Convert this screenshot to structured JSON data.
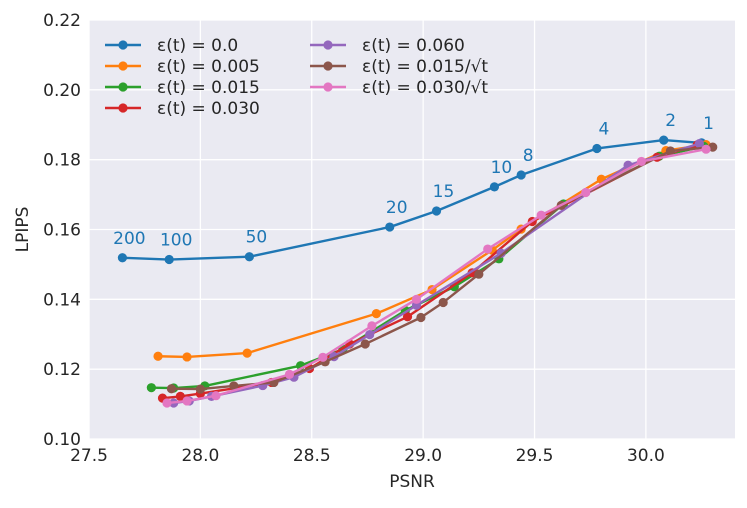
{
  "chart_data": {
    "type": "line",
    "title": "",
    "xlabel": "PSNR",
    "ylabel": "LPIPS",
    "xlim": [
      27.5,
      30.4
    ],
    "ylim": [
      0.1,
      0.22
    ],
    "xticks": [
      27.5,
      28.0,
      28.5,
      29.0,
      29.5,
      30.0
    ],
    "xtick_labels": [
      "27.5",
      "28.0",
      "28.5",
      "29.0",
      "29.5",
      "30.0"
    ],
    "yticks": [
      0.1,
      0.12,
      0.14,
      0.16,
      0.18,
      0.2,
      0.22
    ],
    "ytick_labels": [
      "0.10",
      "0.12",
      "0.14",
      "0.16",
      "0.18",
      "0.20",
      "0.22"
    ],
    "grid": true,
    "legend_position": "top-left",
    "colors": {
      "background": "#eaeaf2",
      "grid": "#ffffff",
      "annotation": "#1f77b4"
    },
    "series": [
      {
        "name": "ε(t) = 0.0",
        "color": "#1f77b4",
        "points": [
          [
            27.65,
            0.1519
          ],
          [
            27.86,
            0.1514
          ],
          [
            28.22,
            0.1522
          ],
          [
            28.85,
            0.1607
          ],
          [
            29.06,
            0.1653
          ],
          [
            29.32,
            0.1722
          ],
          [
            29.44,
            0.1756
          ],
          [
            29.78,
            0.1832
          ],
          [
            30.08,
            0.1856
          ],
          [
            30.25,
            0.1848
          ]
        ]
      },
      {
        "name": "ε(t) = 0.005",
        "color": "#ff7f0e",
        "points": [
          [
            27.81,
            0.1237
          ],
          [
            27.94,
            0.1235
          ],
          [
            28.21,
            0.1246
          ],
          [
            28.79,
            0.1359
          ],
          [
            29.04,
            0.1428
          ],
          [
            29.31,
            0.1541
          ],
          [
            29.44,
            0.1601
          ],
          [
            29.8,
            0.1744
          ],
          [
            30.09,
            0.1826
          ],
          [
            30.27,
            0.1843
          ]
        ]
      },
      {
        "name": "ε(t) = 0.015",
        "color": "#2ca02c",
        "points": [
          [
            27.78,
            0.1147
          ],
          [
            27.88,
            0.1146
          ],
          [
            28.02,
            0.1152
          ],
          [
            28.45,
            0.121
          ],
          [
            28.64,
            0.1257
          ],
          [
            28.92,
            0.1368
          ],
          [
            29.14,
            0.1436
          ],
          [
            29.34,
            0.1516
          ],
          [
            29.63,
            0.1673
          ],
          [
            30.06,
            0.181
          ],
          [
            30.26,
            0.1838
          ]
        ]
      },
      {
        "name": "ε(t) = 0.030",
        "color": "#d62728",
        "points": [
          [
            27.83,
            0.1117
          ],
          [
            27.91,
            0.1122
          ],
          [
            28.0,
            0.113
          ],
          [
            28.32,
            0.1162
          ],
          [
            28.49,
            0.1202
          ],
          [
            28.67,
            0.1272
          ],
          [
            28.93,
            0.135
          ],
          [
            29.22,
            0.1476
          ],
          [
            29.49,
            0.1623
          ],
          [
            30.05,
            0.1807
          ],
          [
            30.23,
            0.1842
          ]
        ]
      },
      {
        "name": "ε(t) = 0.060",
        "color": "#9467bd",
        "points": [
          [
            27.88,
            0.1103
          ],
          [
            27.95,
            0.1109
          ],
          [
            28.05,
            0.1122
          ],
          [
            28.28,
            0.1153
          ],
          [
            28.42,
            0.1177
          ],
          [
            28.6,
            0.1236
          ],
          [
            28.76,
            0.1299
          ],
          [
            28.97,
            0.1383
          ],
          [
            29.35,
            0.1532
          ],
          [
            29.92,
            0.1784
          ],
          [
            30.24,
            0.1846
          ]
        ]
      },
      {
        "name": "ε(t) = 0.015/√t",
        "color": "#8c564b",
        "points": [
          [
            27.87,
            0.1144
          ],
          [
            28.0,
            0.1143
          ],
          [
            28.15,
            0.1152
          ],
          [
            28.33,
            0.1162
          ],
          [
            28.56,
            0.1221
          ],
          [
            28.74,
            0.1272
          ],
          [
            28.99,
            0.1348
          ],
          [
            29.09,
            0.1391
          ],
          [
            29.25,
            0.1472
          ],
          [
            29.62,
            0.1669
          ],
          [
            30.11,
            0.1825
          ],
          [
            30.3,
            0.1836
          ]
        ]
      },
      {
        "name": "ε(t) = 0.030/√t",
        "color": "#e377c2",
        "points": [
          [
            27.85,
            0.1103
          ],
          [
            27.94,
            0.1109
          ],
          [
            28.07,
            0.1124
          ],
          [
            28.4,
            0.1185
          ],
          [
            28.55,
            0.1234
          ],
          [
            28.77,
            0.1324
          ],
          [
            28.97,
            0.14
          ],
          [
            29.29,
            0.1544
          ],
          [
            29.53,
            0.1641
          ],
          [
            29.73,
            0.1706
          ],
          [
            29.98,
            0.1795
          ],
          [
            30.27,
            0.183
          ]
        ]
      }
    ],
    "annotations": [
      {
        "text": "200",
        "x": 27.65,
        "y": 0.1519
      },
      {
        "text": "100",
        "x": 27.86,
        "y": 0.1514
      },
      {
        "text": "50",
        "x": 28.22,
        "y": 0.1522
      },
      {
        "text": "20",
        "x": 28.85,
        "y": 0.1607
      },
      {
        "text": "15",
        "x": 29.06,
        "y": 0.1653
      },
      {
        "text": "10",
        "x": 29.32,
        "y": 0.1722
      },
      {
        "text": "8",
        "x": 29.44,
        "y": 0.1756
      },
      {
        "text": "4",
        "x": 29.78,
        "y": 0.1832
      },
      {
        "text": "2",
        "x": 30.08,
        "y": 0.1856
      },
      {
        "text": "1",
        "x": 30.25,
        "y": 0.1848
      }
    ]
  }
}
